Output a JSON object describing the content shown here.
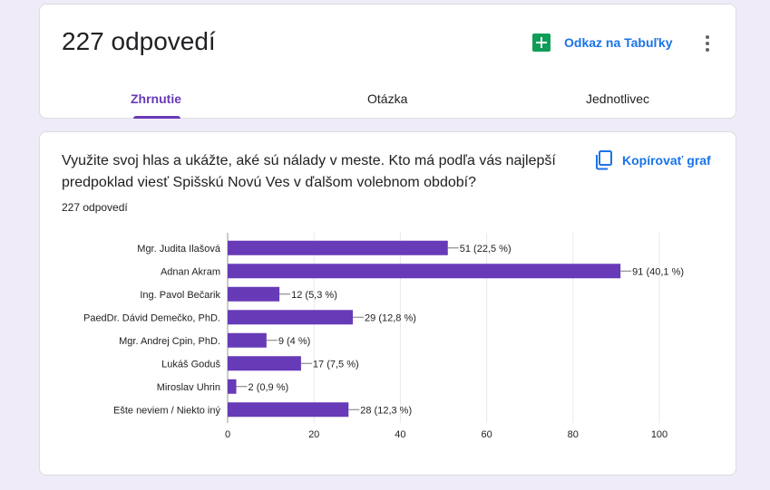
{
  "header": {
    "title": "227 odpovedí",
    "sheets_link_label": "Odkaz na Tabuľky",
    "tabs": [
      {
        "label": "Zhrnutie",
        "active": true
      },
      {
        "label": "Otázka",
        "active": false
      },
      {
        "label": "Jednotlivec",
        "active": false
      }
    ]
  },
  "question": {
    "text": "Využite svoj hlas a ukážte, aké sú nálady v meste. Kto má podľa vás najlepší predpoklad viesť Spišskú Novú Ves v ďalšom volebnom období?",
    "response_count": "227 odpovedí",
    "copy_chart_label": "Kopírovať graf"
  },
  "colors": {
    "accent": "#673ab7",
    "bar": "#673ab7",
    "link": "#1a73e8",
    "sheets_green": "#0f9d58",
    "background": "#f0ebf8"
  },
  "chart_data": {
    "type": "bar",
    "orientation": "horizontal",
    "categories": [
      "Mgr. Judita Ilašová",
      "Adnan Akram",
      "Ing. Pavol Bečarik",
      "PaedDr. Dávid Demečko, PhD.",
      "Mgr. Andrej Cpin, PhD.",
      "Lukáš Goduš",
      "Miroslav Uhrin",
      "Ešte neviem / Niekto iný"
    ],
    "values": [
      51,
      91,
      12,
      29,
      9,
      17,
      2,
      28
    ],
    "data_labels": [
      "51 (22,5 %)",
      "91 (40,1 %)",
      "12 (5,3 %)",
      "29 (12,8 %)",
      "9 (4 %)",
      "17 (7,5 %)",
      "2 (0,9 %)",
      "28 (12,3 %)"
    ],
    "xlim": [
      0,
      100
    ],
    "xticks": [
      0,
      20,
      40,
      60,
      80,
      100
    ],
    "grid": true
  }
}
